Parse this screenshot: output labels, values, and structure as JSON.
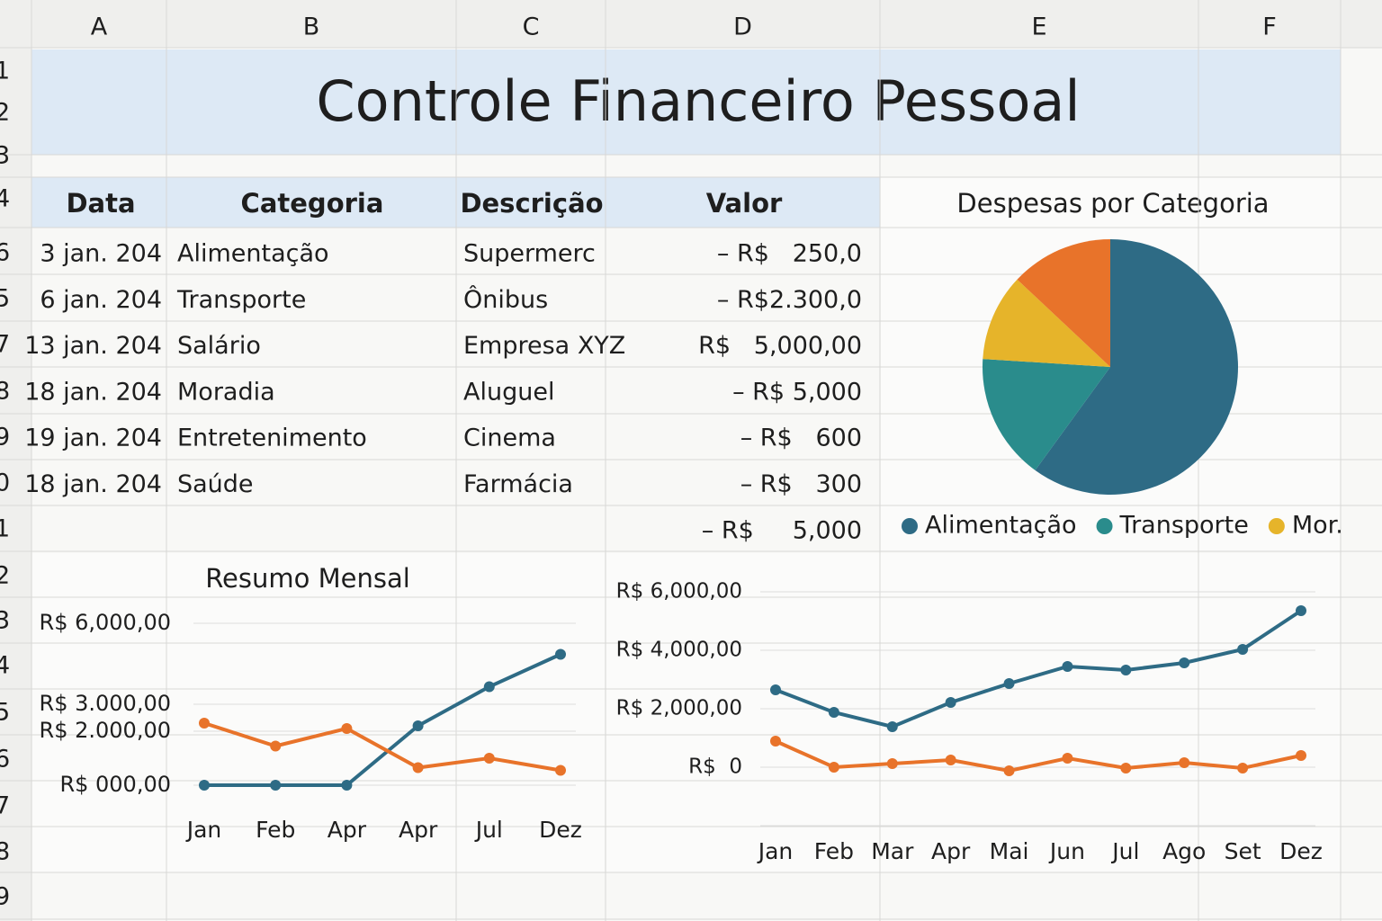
{
  "sheet": {
    "columns": [
      "A",
      "B",
      "C",
      "D",
      "E",
      "F"
    ],
    "row_numbers": [
      "1",
      "2",
      "3",
      "4",
      "6",
      "5",
      "7",
      "8",
      "9",
      "0",
      "1",
      "2",
      "3",
      "4",
      "5",
      "6",
      "7",
      "8",
      "9"
    ]
  },
  "title": "Controle Financeiro Pessoal",
  "table": {
    "headers": [
      "Data",
      "Categoria",
      "Descrição",
      "Valor"
    ],
    "rows": [
      [
        "3 jan. 204",
        "Alimentação",
        "Supermerc",
        "– R$   250,0"
      ],
      [
        "6 jan. 204",
        "Transporte",
        "Ônibus",
        "– R$2.300,0"
      ],
      [
        "13 jan. 204",
        "Salário",
        "Empresa XYZ",
        "R$   5,000,00"
      ],
      [
        "18 jan. 204",
        "Moradia",
        "Aluguel",
        "– R$ 5,000"
      ],
      [
        "19 jan. 204",
        "Entretenimento",
        "Cinema",
        "– R$   600"
      ],
      [
        "18 jan. 204",
        "Saúde",
        "Farmácia",
        "– R$   300"
      ]
    ],
    "total": "– R$     5,000"
  },
  "pie": {
    "type": "pie",
    "title": "Despesas por Categoria",
    "categories": [
      "Alimentação",
      "Transporte",
      "Mor.",
      null
    ],
    "values": [
      60,
      16,
      11,
      13
    ],
    "colors": [
      "#2e6b85",
      "#2a8c8c",
      "#e6b42a",
      "#e8732a"
    ]
  },
  "line1": {
    "type": "line",
    "title": "Resumo Mensal",
    "categories": [
      "Jan",
      "Feb",
      "Apr",
      "Apr",
      "Jul",
      "Dez"
    ],
    "series": [
      {
        "color": "#2e6b85",
        "values": [
          0,
          0,
          0,
          2200,
          3650,
          4850
        ]
      },
      {
        "color": "#e8732a",
        "values": [
          2300,
          1450,
          2100,
          650,
          1000,
          550
        ]
      }
    ],
    "ylim": [
      0,
      6000
    ],
    "yticks": [
      {
        "value": 6000,
        "label": "R$ 6,000,00"
      },
      {
        "value": 3000,
        "label": "R$ 3.000,00"
      },
      {
        "value": 2000,
        "label": "R$ 2.000,00"
      },
      {
        "value": 0,
        "label": "R$ 000,00"
      }
    ]
  },
  "line2": {
    "type": "line",
    "categories": [
      "Jan",
      "Feb",
      "Mar",
      "Apr",
      "Mai",
      "Jun",
      "Jul",
      "Ago",
      "Set",
      "Dez"
    ],
    "series": [
      {
        "color": "#2e6b85",
        "values": [
          2646,
          1877,
          1385,
          2215,
          2862,
          3446,
          3323,
          3569,
          4031,
          5354
        ]
      },
      {
        "color": "#e8732a",
        "values": [
          892,
          0,
          123,
          246,
          -123,
          308,
          -31,
          154,
          -31,
          400
        ]
      }
    ],
    "ylim": [
      -2000,
      6000
    ],
    "yticks": [
      {
        "value": 6000,
        "label": "R$ 6,000,00"
      },
      {
        "value": 4000,
        "label": "R$ 4,000,00"
      },
      {
        "value": 2000,
        "label": "R$ 2,000,00"
      },
      {
        "value": 0,
        "label": "R$  0"
      }
    ]
  }
}
